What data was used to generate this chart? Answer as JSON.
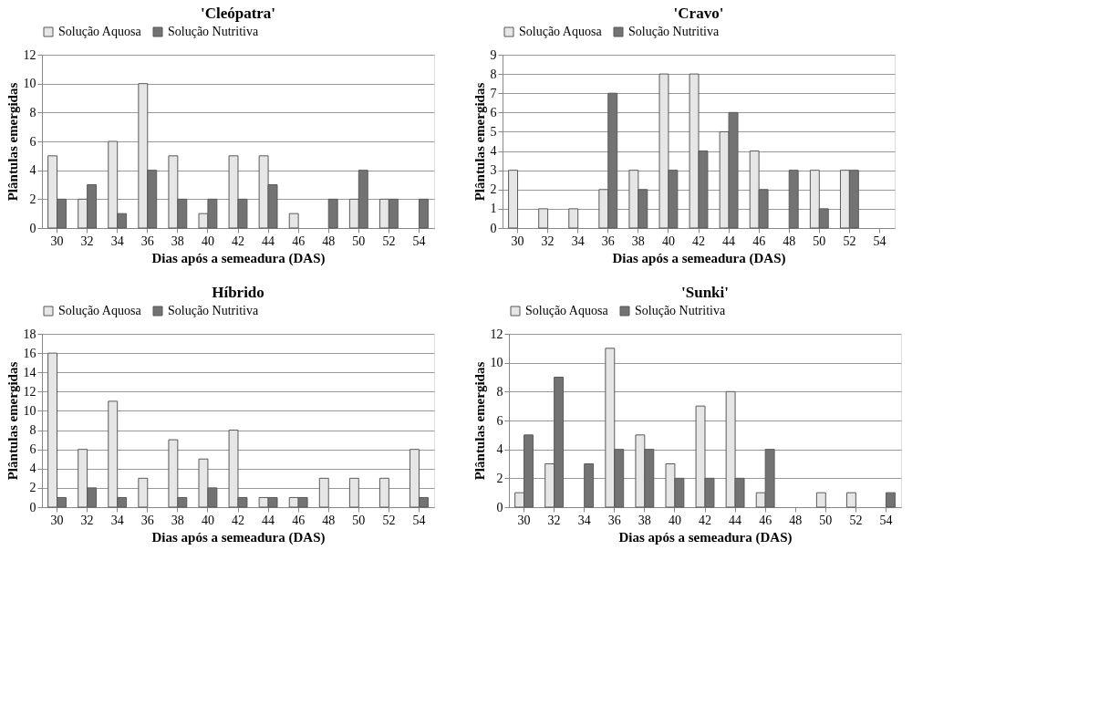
{
  "chart_data": [
    {
      "type": "bar",
      "title": "'Cleópatra'",
      "xlabel": "Dias após a semeadura (DAS)",
      "ylabel": "Plântulas emergidas",
      "categories": [
        "30",
        "32",
        "34",
        "36",
        "38",
        "40",
        "42",
        "44",
        "46",
        "48",
        "50",
        "52",
        "54"
      ],
      "series": [
        {
          "name": "Solução Aquosa",
          "color": "#e6e6e6",
          "values": [
            5,
            2,
            6,
            10,
            5,
            1,
            5,
            5,
            1,
            0,
            2,
            2,
            0
          ]
        },
        {
          "name": "Solução Nutritiva",
          "color": "#737373",
          "values": [
            2,
            3,
            1,
            4,
            2,
            2,
            2,
            3,
            0,
            2,
            4,
            2,
            2
          ]
        }
      ],
      "ylim": [
        0,
        12
      ],
      "yticks": [
        0,
        2,
        4,
        6,
        8,
        10,
        12
      ],
      "grid": "y",
      "legend": "top"
    },
    {
      "type": "bar",
      "title": "'Cravo'",
      "xlabel": "Dias após a semeadura (DAS)",
      "ylabel": "Plântulas emergidas",
      "categories": [
        "30",
        "32",
        "34",
        "36",
        "38",
        "40",
        "42",
        "44",
        "46",
        "48",
        "50",
        "52",
        "54"
      ],
      "series": [
        {
          "name": "Solução Aquosa",
          "color": "#e6e6e6",
          "values": [
            3,
            1,
            1,
            2,
            3,
            8,
            8,
            5,
            4,
            0,
            3,
            3,
            0
          ]
        },
        {
          "name": "Solução Nutritiva",
          "color": "#737373",
          "values": [
            0,
            0,
            0,
            7,
            2,
            3,
            4,
            6,
            2,
            3,
            1,
            3,
            0
          ]
        }
      ],
      "ylim": [
        0,
        9
      ],
      "yticks": [
        0,
        1,
        2,
        3,
        4,
        5,
        6,
        7,
        8,
        9
      ],
      "grid": "y",
      "legend": "top"
    },
    {
      "type": "bar",
      "title": "Híbrido",
      "xlabel": "Dias após a semeadura (DAS)",
      "ylabel": "Plântulas emergidas",
      "categories": [
        "30",
        "32",
        "34",
        "36",
        "38",
        "40",
        "42",
        "44",
        "46",
        "48",
        "50",
        "52",
        "54"
      ],
      "series": [
        {
          "name": "Solução Aquosa",
          "color": "#e6e6e6",
          "values": [
            16,
            6,
            11,
            3,
            7,
            5,
            8,
            1,
            1,
            3,
            3,
            3,
            6
          ]
        },
        {
          "name": "Solução Nutritiva",
          "color": "#737373",
          "values": [
            1,
            2,
            1,
            0,
            1,
            2,
            1,
            1,
            1,
            0,
            0,
            0,
            1
          ]
        }
      ],
      "ylim": [
        0,
        18
      ],
      "yticks": [
        0,
        2,
        4,
        6,
        8,
        10,
        12,
        14,
        16,
        18
      ],
      "grid": "y",
      "legend": "top"
    },
    {
      "type": "bar",
      "title": "'Sunki'",
      "xlabel": "Dias após a semeadura (DAS)",
      "ylabel": "Plântulas emergidas",
      "categories": [
        "30",
        "32",
        "34",
        "36",
        "38",
        "40",
        "42",
        "44",
        "46",
        "48",
        "50",
        "52",
        "54"
      ],
      "series": [
        {
          "name": "Solução Aquosa",
          "color": "#e6e6e6",
          "values": [
            1,
            3,
            0,
            11,
            5,
            3,
            7,
            8,
            1,
            0,
            1,
            1,
            0
          ]
        },
        {
          "name": "Solução Nutritiva",
          "color": "#737373",
          "values": [
            5,
            9,
            3,
            4,
            4,
            2,
            2,
            2,
            4,
            0,
            0,
            0,
            1
          ]
        }
      ],
      "ylim": [
        0,
        12
      ],
      "yticks": [
        0,
        2,
        4,
        6,
        8,
        10,
        12
      ],
      "grid": "y",
      "legend": "top"
    }
  ]
}
